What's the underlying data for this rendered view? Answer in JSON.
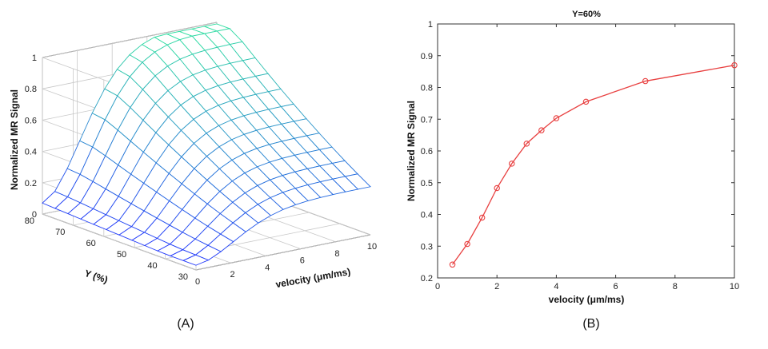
{
  "chart_data": [
    {
      "panel_label": "(A)",
      "type": "surface",
      "zlabel": "Normalized MR Signal",
      "ylabel": "Y (%)",
      "xlabel": "velocity (μm/ms)",
      "x_range": [
        0,
        10
      ],
      "y_range": [
        30,
        80
      ],
      "z_range": [
        0,
        1
      ],
      "x_ticks": [
        "0",
        "2",
        "4",
        "6",
        "8",
        "10"
      ],
      "y_ticks": [
        "30",
        "40",
        "50",
        "60",
        "70",
        "80"
      ],
      "z_ticks": [
        "0",
        "0.2",
        "0.4",
        "0.6",
        "0.8",
        "1"
      ],
      "grid": true,
      "colormap": [
        "#2030ff",
        "#30e0a0"
      ]
    },
    {
      "panel_label": "(B)",
      "type": "line",
      "title": "Y=60%",
      "xlabel": "velocity (μm/ms)",
      "ylabel": "Normalized MR Signal",
      "xlim": [
        0,
        10
      ],
      "ylim": [
        0.2,
        1
      ],
      "x_ticks": [
        "0",
        "2",
        "4",
        "6",
        "8",
        "10"
      ],
      "y_ticks": [
        "0.2",
        "0.3",
        "0.4",
        "0.5",
        "0.6",
        "0.7",
        "0.8",
        "0.9",
        "1"
      ],
      "marker": "circle",
      "color": "#e84040",
      "x": [
        0.5,
        1,
        1.5,
        2,
        2.5,
        3,
        3.5,
        4,
        5,
        7,
        10
      ],
      "y": [
        0.242,
        0.307,
        0.39,
        0.483,
        0.56,
        0.623,
        0.665,
        0.703,
        0.755,
        0.82,
        0.87
      ]
    }
  ]
}
